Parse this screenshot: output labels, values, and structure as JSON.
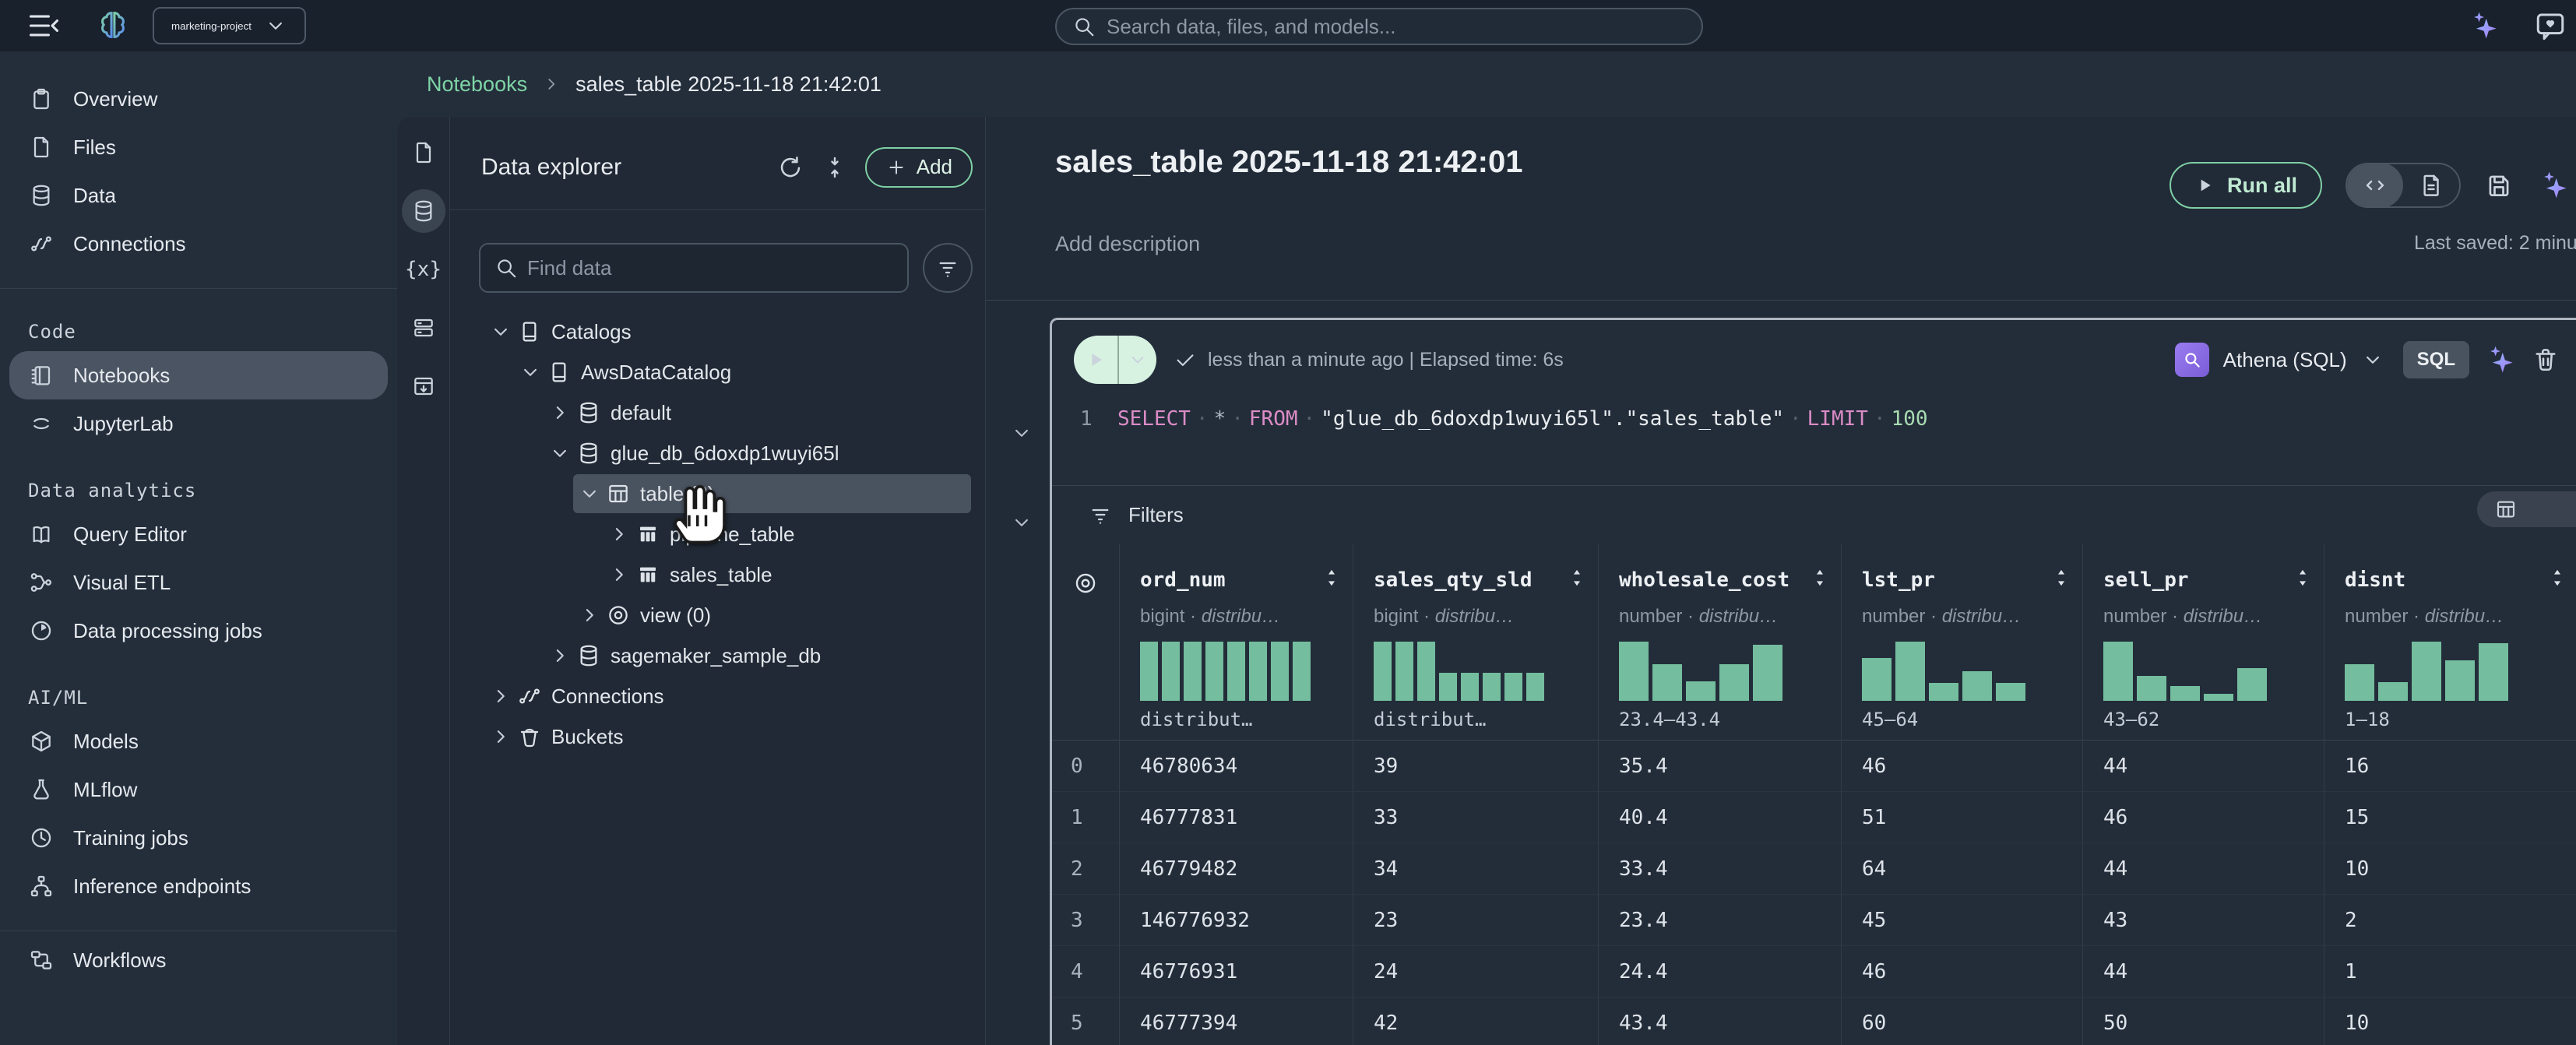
{
  "topbar": {
    "project": "marketing-project",
    "search_placeholder": "Search data, files, and models..."
  },
  "breadcrumb": {
    "link": "Notebooks",
    "current": "sales_table 2025-11-18 21:42:01"
  },
  "sidebar": {
    "groups": [
      {
        "header": null,
        "items": [
          {
            "label": "Overview",
            "icon": "clipboard-icon"
          },
          {
            "label": "Files",
            "icon": "file-icon"
          },
          {
            "label": "Data",
            "icon": "database-icon"
          },
          {
            "label": "Connections",
            "icon": "connections-icon"
          }
        ]
      },
      {
        "header": "Code",
        "items": [
          {
            "label": "Notebooks",
            "icon": "notebook-icon",
            "selected": true
          },
          {
            "label": "JupyterLab",
            "icon": "jupyter-icon"
          }
        ]
      },
      {
        "header": "Data analytics",
        "items": [
          {
            "label": "Query Editor",
            "icon": "open-book-icon"
          },
          {
            "label": "Visual ETL",
            "icon": "etl-icon"
          },
          {
            "label": "Data processing jobs",
            "icon": "processing-icon"
          }
        ]
      },
      {
        "header": "AI/ML",
        "items": [
          {
            "label": "Models",
            "icon": "cube-icon"
          },
          {
            "label": "MLflow",
            "icon": "flask-icon"
          },
          {
            "label": "Training jobs",
            "icon": "clock-icon"
          },
          {
            "label": "Inference endpoints",
            "icon": "endpoints-icon"
          }
        ]
      },
      {
        "header": null,
        "divider_before": true,
        "items": [
          {
            "label": "Workflows",
            "icon": "workflow-icon"
          }
        ]
      }
    ]
  },
  "iconstrip": [
    {
      "icon": "file-icon",
      "selected": false
    },
    {
      "icon": "database-icon",
      "selected": true
    },
    {
      "icon": "braces-icon",
      "selected": false
    },
    {
      "icon": "server-icon",
      "selected": false
    },
    {
      "icon": "table-download-icon",
      "selected": false
    }
  ],
  "explorer": {
    "title": "Data explorer",
    "add_label": "Add",
    "search_placeholder": "Find data",
    "tree": [
      {
        "label": "Catalogs",
        "icon": "catalog-icon",
        "depth": 0,
        "expanded": true
      },
      {
        "label": "AwsDataCatalog",
        "icon": "catalog-icon",
        "depth": 1,
        "expanded": true
      },
      {
        "label": "default",
        "icon": "database-icon",
        "depth": 2,
        "expanded": false
      },
      {
        "label": "glue_db_6doxdp1wuyi65l",
        "icon": "database-icon",
        "depth": 2,
        "expanded": true
      },
      {
        "label": "table (2)",
        "icon": "table-grid-icon",
        "depth": 3,
        "expanded": true,
        "selected": true
      },
      {
        "label": "pipeline_table",
        "icon": "table-columns-icon",
        "depth": 4,
        "expanded": false
      },
      {
        "label": "sales_table",
        "icon": "table-columns-icon",
        "depth": 4,
        "expanded": false
      },
      {
        "label": "view (0)",
        "icon": "view-icon",
        "depth": 3,
        "expanded": false
      },
      {
        "label": "sagemaker_sample_db",
        "icon": "database-icon",
        "depth": 2,
        "expanded": false
      },
      {
        "label": "Connections",
        "icon": "connections-icon",
        "depth": 0,
        "expanded": false
      },
      {
        "label": "Buckets",
        "icon": "bucket-icon",
        "depth": 0,
        "expanded": false
      }
    ]
  },
  "notebook": {
    "title": "sales_table 2025-11-18 21:42:01",
    "description_placeholder": "Add description",
    "run_all_label": "Run all",
    "last_saved": "Last saved: 2 minu",
    "cell": {
      "line_no": "1",
      "status_text": "less than a minute ago | Elapsed time: 6s",
      "code_tokens": [
        {
          "text": "SELECT",
          "type": "kw"
        },
        {
          "text": "*",
          "type": "op"
        },
        {
          "text": "FROM",
          "type": "kw"
        },
        {
          "text": "\"glue_db_6doxdp1wuyi65l\".\"sales_table\"",
          "type": "str"
        },
        {
          "text": "LIMIT",
          "type": "kw"
        },
        {
          "text": "100",
          "type": "num"
        }
      ],
      "engine": "Athena (SQL)",
      "lang_badge": "SQL"
    },
    "filters_label": "Filters"
  },
  "results": {
    "columns": [
      {
        "name": "ord_num",
        "type": "bigint",
        "type_detail": "distribu…",
        "caption": "distribut…",
        "hist": [
          1,
          1,
          1,
          1,
          1,
          1,
          1,
          1
        ]
      },
      {
        "name": "sales_qty_sld",
        "type": "bigint",
        "type_detail": "distribu…",
        "caption": "distribut…",
        "hist": [
          1,
          1,
          1,
          0.48,
          0.48,
          0.48,
          0.48,
          0.48
        ]
      },
      {
        "name": "wholesale_cost",
        "type": "number",
        "type_detail": "distribu…",
        "caption": "23.4–43.4",
        "hist": [
          1,
          0.62,
          0.33,
          0.62,
          0.95
        ]
      },
      {
        "name": "lst_pr",
        "type": "number",
        "type_detail": "distribu…",
        "caption": "45–64",
        "hist": [
          0.72,
          1,
          0.3,
          0.5,
          0.3
        ]
      },
      {
        "name": "sell_pr",
        "type": "number",
        "type_detail": "distribu…",
        "caption": "43–62",
        "hist": [
          1,
          0.42,
          0.25,
          0.12,
          0.55
        ]
      },
      {
        "name": "disnt",
        "type": "number",
        "type_detail": "distribu…",
        "caption": "1–18",
        "hist": [
          0.62,
          0.32,
          1,
          0.68,
          0.97
        ]
      }
    ],
    "rows": [
      [
        "0",
        "46780634",
        "39",
        "35.4",
        "46",
        "44",
        "16"
      ],
      [
        "1",
        "46777831",
        "33",
        "40.4",
        "51",
        "46",
        "15"
      ],
      [
        "2",
        "46779482",
        "34",
        "33.4",
        "64",
        "44",
        "10"
      ],
      [
        "3",
        "146776932",
        "23",
        "23.4",
        "45",
        "43",
        "2"
      ],
      [
        "4",
        "46776931",
        "24",
        "24.4",
        "46",
        "44",
        "1"
      ],
      [
        "5",
        "46777394",
        "42",
        "43.4",
        "60",
        "50",
        "10"
      ]
    ]
  }
}
